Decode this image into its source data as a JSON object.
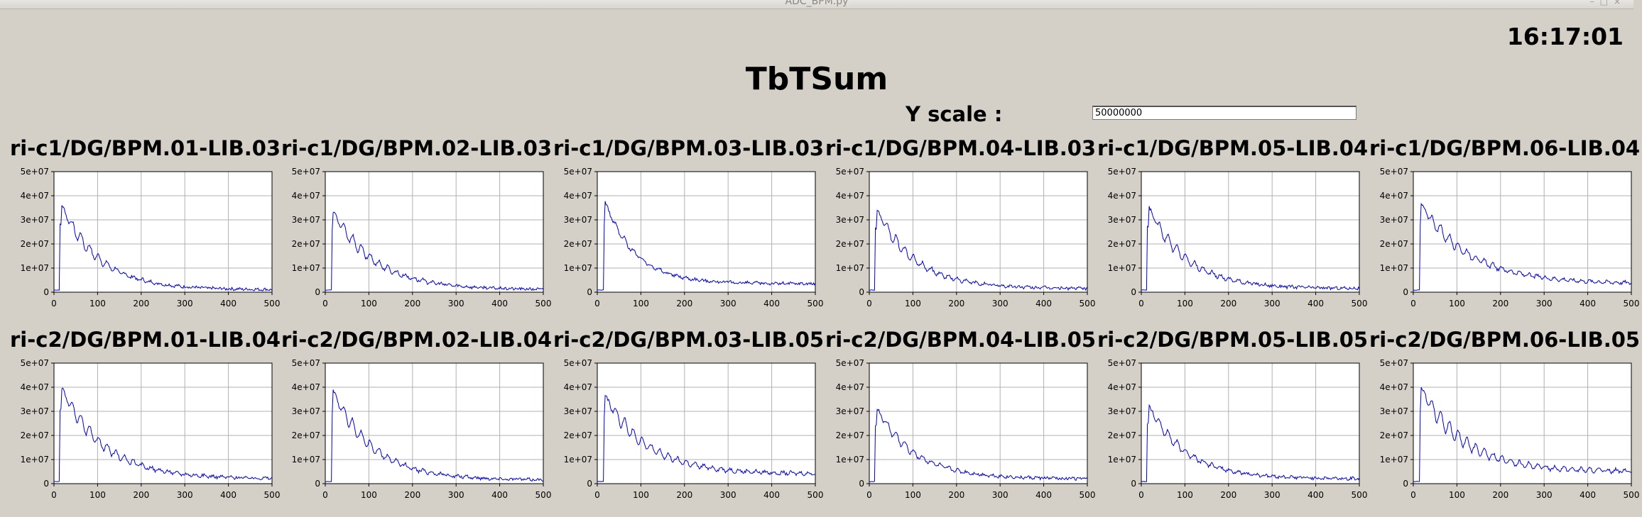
{
  "window": {
    "title": "ADC_BPM.py"
  },
  "header": {
    "clock": "16:17:01",
    "title": "TbTSum"
  },
  "yscale": {
    "label": "Y scale :",
    "value": "50000000"
  },
  "theme": {
    "background": "#d4d0c8",
    "trace_color": "#0000cc",
    "grid_color": "#b0b0b0",
    "plot_bg": "#ffffff"
  },
  "chart_data": [
    {
      "type": "line",
      "title": "ri-c1/DG/BPM.01-LIB.03",
      "xlim": [
        0,
        500
      ],
      "ylim": [
        0,
        50000000
      ],
      "xticks": [
        "0",
        "100",
        "200",
        "300",
        "400",
        "500"
      ],
      "yticks": [
        "0",
        "1e+07",
        "2e+07",
        "3e+07",
        "4e+07",
        "5e+07"
      ],
      "series": [
        {
          "peak_x": 17,
          "peak": 36500000,
          "tail": 1000000,
          "decay": 85,
          "osc": 0.12
        }
      ]
    },
    {
      "type": "line",
      "title": "ri-c1/DG/BPM.02-LIB.03",
      "xlim": [
        0,
        500
      ],
      "ylim": [
        0,
        50000000
      ],
      "xticks": [
        "0",
        "100",
        "200",
        "300",
        "400",
        "500"
      ],
      "yticks": [
        "0",
        "1e+07",
        "2e+07",
        "3e+07",
        "4e+07",
        "5e+07"
      ],
      "series": [
        {
          "peak_x": 18,
          "peak": 33500000,
          "tail": 1000000,
          "decay": 95,
          "osc": 0.12
        }
      ]
    },
    {
      "type": "line",
      "title": "ri-c1/DG/BPM.03-LIB.03",
      "xlim": [
        0,
        500
      ],
      "ylim": [
        0,
        50000000
      ],
      "xticks": [
        "0",
        "100",
        "200",
        "300",
        "400",
        "500"
      ],
      "yticks": [
        "0",
        "1e+07",
        "2e+07",
        "3e+07",
        "4e+07",
        "5e+07"
      ],
      "series": [
        {
          "peak_x": 18,
          "peak": 37500000,
          "tail": 3500000,
          "decay": 70,
          "osc": 0.06
        }
      ]
    },
    {
      "type": "line",
      "title": "ri-c1/DG/BPM.04-LIB.03",
      "xlim": [
        0,
        500
      ],
      "ylim": [
        0,
        50000000
      ],
      "xticks": [
        "0",
        "100",
        "200",
        "300",
        "400",
        "500"
      ],
      "yticks": [
        "0",
        "1e+07",
        "2e+07",
        "3e+07",
        "4e+07",
        "5e+07"
      ],
      "series": [
        {
          "peak_x": 17,
          "peak": 34500000,
          "tail": 1500000,
          "decay": 85,
          "osc": 0.12
        }
      ]
    },
    {
      "type": "line",
      "title": "ri-c1/DG/BPM.05-LIB.04",
      "xlim": [
        0,
        500
      ],
      "ylim": [
        0,
        50000000
      ],
      "xticks": [
        "0",
        "100",
        "200",
        "300",
        "400",
        "500"
      ],
      "yticks": [
        "0",
        "1e+07",
        "2e+07",
        "3e+07",
        "4e+07",
        "5e+07"
      ],
      "series": [
        {
          "peak_x": 17,
          "peak": 35500000,
          "tail": 1500000,
          "decay": 85,
          "osc": 0.12
        }
      ]
    },
    {
      "type": "line",
      "title": "ri-c1/DG/BPM.06-LIB.04",
      "xlim": [
        0,
        500
      ],
      "ylim": [
        0,
        50000000
      ],
      "xticks": [
        "0",
        "100",
        "200",
        "300",
        "400",
        "500"
      ],
      "yticks": [
        "0",
        "1e+07",
        "2e+07",
        "3e+07",
        "4e+07",
        "5e+07"
      ],
      "series": [
        {
          "peak_x": 18,
          "peak": 36500000,
          "tail": 3500000,
          "decay": 110,
          "osc": 0.1
        }
      ]
    },
    {
      "type": "line",
      "title": "ri-c2/DG/BPM.01-LIB.04",
      "xlim": [
        0,
        500
      ],
      "ylim": [
        0,
        50000000
      ],
      "xticks": [
        "0",
        "100",
        "200",
        "300",
        "400",
        "500"
      ],
      "yticks": [
        "0",
        "1e+07",
        "2e+07",
        "3e+07",
        "4e+07",
        "5e+07"
      ],
      "series": [
        {
          "peak_x": 17,
          "peak": 40000000,
          "tail": 2000000,
          "decay": 95,
          "osc": 0.12
        }
      ]
    },
    {
      "type": "line",
      "title": "ri-c2/DG/BPM.02-LIB.04",
      "xlim": [
        0,
        500
      ],
      "ylim": [
        0,
        50000000
      ],
      "xticks": [
        "0",
        "100",
        "200",
        "300",
        "400",
        "500"
      ],
      "yticks": [
        "0",
        "1e+07",
        "2e+07",
        "3e+07",
        "4e+07",
        "5e+07"
      ],
      "series": [
        {
          "peak_x": 18,
          "peak": 38500000,
          "tail": 1500000,
          "decay": 90,
          "osc": 0.12
        }
      ]
    },
    {
      "type": "line",
      "title": "ri-c2/DG/BPM.03-LIB.05",
      "xlim": [
        0,
        500
      ],
      "ylim": [
        0,
        50000000
      ],
      "xticks": [
        "0",
        "100",
        "200",
        "300",
        "400",
        "500"
      ],
      "yticks": [
        "0",
        "1e+07",
        "2e+07",
        "3e+07",
        "4e+07",
        "5e+07"
      ],
      "series": [
        {
          "peak_x": 18,
          "peak": 36500000,
          "tail": 4000000,
          "decay": 95,
          "osc": 0.12
        }
      ]
    },
    {
      "type": "line",
      "title": "ri-c2/DG/BPM.04-LIB.05",
      "xlim": [
        0,
        500
      ],
      "ylim": [
        0,
        50000000
      ],
      "xticks": [
        "0",
        "100",
        "200",
        "300",
        "400",
        "500"
      ],
      "yticks": [
        "0",
        "1e+07",
        "2e+07",
        "3e+07",
        "4e+07",
        "5e+07"
      ],
      "series": [
        {
          "peak_x": 17,
          "peak": 31500000,
          "tail": 2000000,
          "decay": 85,
          "osc": 0.1
        }
      ]
    },
    {
      "type": "line",
      "title": "ri-c2/DG/BPM.05-LIB.05",
      "xlim": [
        0,
        500
      ],
      "ylim": [
        0,
        50000000
      ],
      "xticks": [
        "0",
        "100",
        "200",
        "300",
        "400",
        "500"
      ],
      "yticks": [
        "0",
        "1e+07",
        "2e+07",
        "3e+07",
        "4e+07",
        "5e+07"
      ],
      "series": [
        {
          "peak_x": 17,
          "peak": 32500000,
          "tail": 2000000,
          "decay": 85,
          "osc": 0.1
        }
      ]
    },
    {
      "type": "line",
      "title": "ri-c2/DG/BPM.06-LIB.05",
      "xlim": [
        0,
        500
      ],
      "ylim": [
        0,
        50000000
      ],
      "xticks": [
        "0",
        "100",
        "200",
        "300",
        "400",
        "500"
      ],
      "yticks": [
        "0",
        "1e+07",
        "2e+07",
        "3e+07",
        "4e+07",
        "5e+07"
      ],
      "series": [
        {
          "peak_x": 18,
          "peak": 40000000,
          "tail": 5000000,
          "decay": 95,
          "osc": 0.14
        }
      ]
    }
  ]
}
